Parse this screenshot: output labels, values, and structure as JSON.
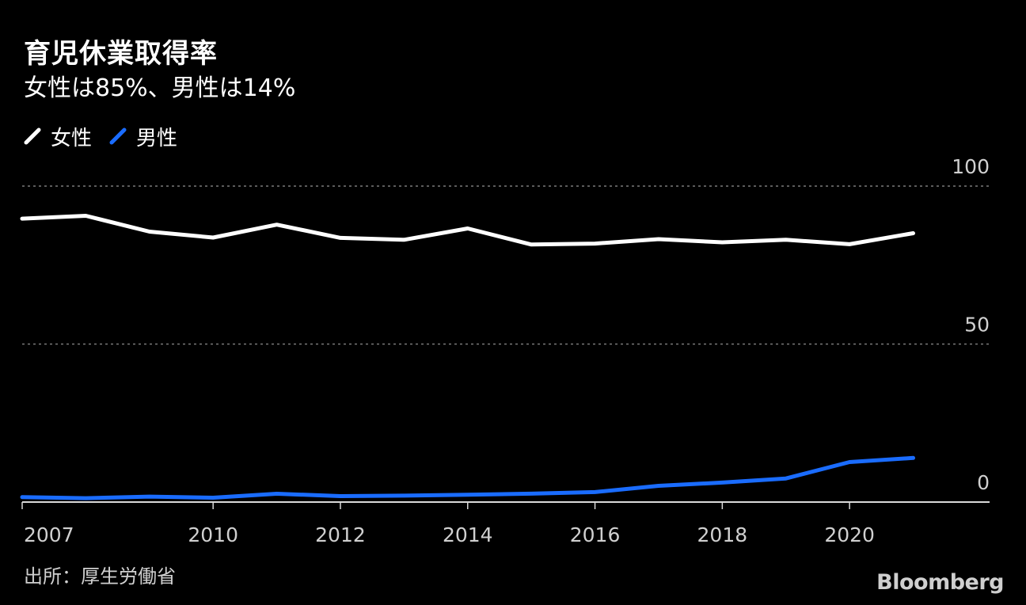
{
  "header": {
    "title": "育児休業取得率",
    "subtitle": "女性は85%、男性は14%"
  },
  "legend": [
    {
      "label": "女性",
      "color": "#ffffff"
    },
    {
      "label": "男性",
      "color": "#1a6cff"
    }
  ],
  "chart_data": {
    "type": "line",
    "x": [
      2007,
      2008,
      2009,
      2010,
      2011,
      2012,
      2013,
      2014,
      2015,
      2016,
      2017,
      2018,
      2019,
      2020,
      2021
    ],
    "series": [
      {
        "name": "女性",
        "color": "#ffffff",
        "values": [
          89.7,
          90.6,
          85.6,
          83.7,
          87.8,
          83.6,
          83.0,
          86.6,
          81.5,
          81.8,
          83.2,
          82.2,
          83.0,
          81.6,
          85.1
        ]
      },
      {
        "name": "男性",
        "color": "#1a6cff",
        "values": [
          1.56,
          1.23,
          1.72,
          1.38,
          2.63,
          1.89,
          2.03,
          2.3,
          2.65,
          3.16,
          5.14,
          6.16,
          7.48,
          12.65,
          13.97
        ]
      }
    ],
    "yticks": [
      0,
      50,
      100
    ],
    "ytick_labels": [
      "0",
      "50",
      "100"
    ],
    "xticks": [
      2007,
      2010,
      2012,
      2014,
      2016,
      2018,
      2020
    ],
    "xtick_labels": [
      "2007",
      "2010",
      "2012",
      "2014",
      "2016",
      "2018",
      "2020"
    ],
    "ylim": [
      0,
      100
    ],
    "xlim": [
      2007,
      2022.2
    ],
    "grid": true,
    "title": "育児休業取得率",
    "xlabel": "",
    "ylabel": ""
  },
  "footer": {
    "source": "出所：厚生労働省",
    "brand": "Bloomberg"
  }
}
